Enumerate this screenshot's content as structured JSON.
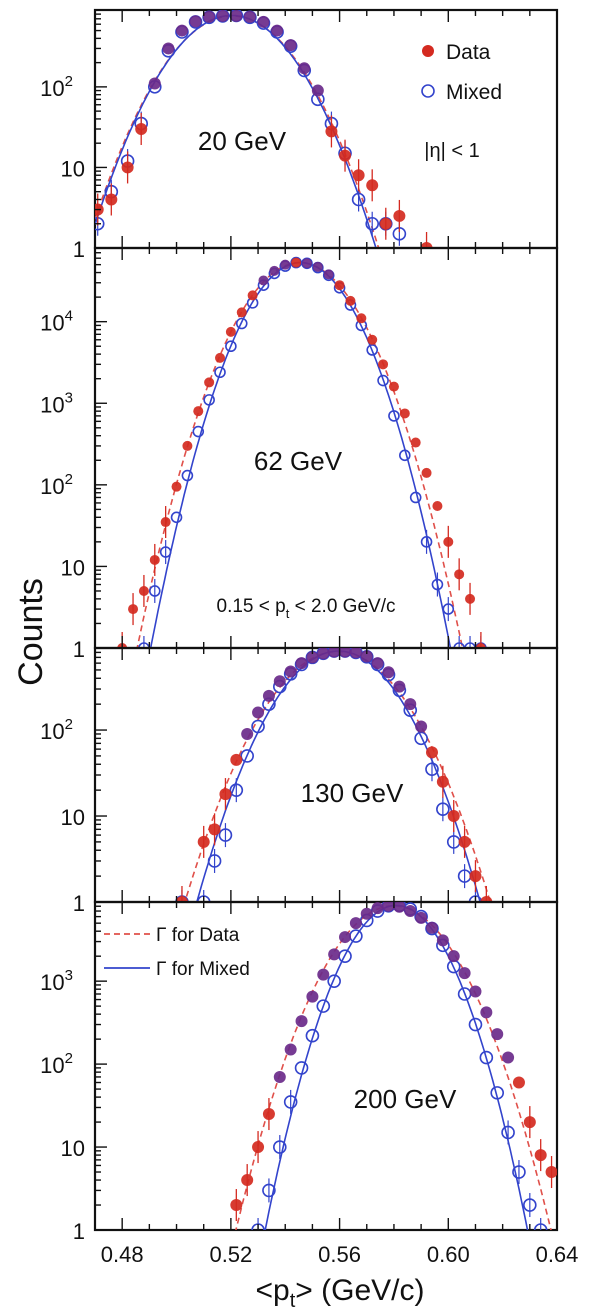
{
  "figure": {
    "ylabel": "Counts",
    "xlabel": "<p",
    "xlabel_sub": "t",
    "xlabel_tail": "> (GeV/c)",
    "x_ticks": [
      "0.48",
      "0.52",
      "0.56",
      "0.60",
      "0.64"
    ],
    "colors": {
      "data": "#d42a20",
      "mixed": "#3344cc",
      "overlap": "#6a2a8a"
    }
  },
  "chart_data": [
    {
      "type": "scatter",
      "panel_label": "20 GeV",
      "annotation": "|η| < 1",
      "legend": [
        {
          "name": "Data",
          "marker": "filled-circle",
          "color": "#d42a20"
        },
        {
          "name": "Mixed",
          "marker": "open-circle",
          "color": "#3344cc"
        }
      ],
      "xlim": [
        0.47,
        0.64
      ],
      "ylim": [
        1,
        900
      ],
      "ylog": true,
      "y_ticks": [
        {
          "value": 1,
          "label": "1"
        },
        {
          "value": 10,
          "label": "10"
        },
        {
          "value": 100,
          "label": "10",
          "sup": "2"
        }
      ],
      "data": {
        "x": [
          0.471,
          0.476,
          0.482,
          0.487,
          0.492,
          0.497,
          0.502,
          0.507,
          0.512,
          0.517,
          0.522,
          0.527,
          0.532,
          0.537,
          0.542,
          0.547,
          0.552,
          0.557,
          0.562,
          0.567,
          0.572,
          0.577,
          0.582,
          0.592
        ],
        "y": [
          3,
          4,
          10,
          30,
          110,
          300,
          500,
          650,
          740,
          760,
          760,
          740,
          640,
          500,
          330,
          170,
          90,
          28,
          14,
          8,
          6,
          2,
          2.5,
          1
        ]
      },
      "mixed": {
        "x": [
          0.471,
          0.476,
          0.482,
          0.487,
          0.492,
          0.497,
          0.502,
          0.507,
          0.512,
          0.517,
          0.522,
          0.527,
          0.532,
          0.537,
          0.542,
          0.547,
          0.552,
          0.557,
          0.562,
          0.567,
          0.572,
          0.577,
          0.582
        ],
        "y": [
          2,
          5,
          12,
          35,
          100,
          280,
          480,
          640,
          730,
          760,
          770,
          730,
          620,
          480,
          320,
          160,
          70,
          35,
          15,
          4,
          2,
          2,
          1.5
        ]
      }
    },
    {
      "type": "scatter",
      "panel_label": "62 GeV",
      "annotation": "0.15 < p",
      "annotation_sub": "t",
      "annotation_tail": " < 2.0 GeV/c",
      "xlim": [
        0.47,
        0.64
      ],
      "ylim": [
        1,
        80000
      ],
      "ylog": true,
      "y_ticks": [
        {
          "value": 1,
          "label": "1"
        },
        {
          "value": 10,
          "label": "10"
        },
        {
          "value": 100,
          "label": "10",
          "sup": "2"
        },
        {
          "value": 1000,
          "label": "10",
          "sup": "3"
        },
        {
          "value": 10000,
          "label": "10",
          "sup": "4"
        }
      ],
      "data": {
        "x": [
          0.48,
          0.484,
          0.488,
          0.492,
          0.496,
          0.5,
          0.504,
          0.508,
          0.512,
          0.516,
          0.52,
          0.524,
          0.528,
          0.532,
          0.536,
          0.54,
          0.544,
          0.548,
          0.552,
          0.556,
          0.56,
          0.564,
          0.568,
          0.572,
          0.576,
          0.58,
          0.584,
          0.588,
          0.592,
          0.596,
          0.6,
          0.604,
          0.608,
          0.612
        ],
        "y": [
          1,
          3,
          5,
          12,
          35,
          95,
          300,
          800,
          1800,
          3600,
          7500,
          13000,
          21000,
          32000,
          42000,
          50000,
          53000,
          52000,
          47000,
          38000,
          28000,
          18000,
          11000,
          6000,
          3000,
          1600,
          750,
          330,
          140,
          55,
          20,
          8,
          4,
          1
        ]
      },
      "mixed": {
        "x": [
          0.488,
          0.492,
          0.496,
          0.5,
          0.504,
          0.508,
          0.512,
          0.516,
          0.52,
          0.524,
          0.528,
          0.532,
          0.536,
          0.54,
          0.544,
          0.548,
          0.552,
          0.556,
          0.56,
          0.564,
          0.568,
          0.572,
          0.576,
          0.58,
          0.584,
          0.588,
          0.592,
          0.596,
          0.6,
          0.604,
          0.608,
          0.612
        ],
        "y": [
          1,
          5,
          15,
          40,
          130,
          450,
          1100,
          2400,
          5000,
          9500,
          17000,
          28000,
          39000,
          48000,
          53000,
          52000,
          46000,
          37000,
          26000,
          16000,
          9000,
          4500,
          1900,
          700,
          230,
          70,
          20,
          6,
          3,
          1,
          1,
          1
        ]
      }
    },
    {
      "type": "scatter",
      "panel_label": "130 GeV",
      "xlim": [
        0.47,
        0.64
      ],
      "ylim": [
        1,
        900
      ],
      "ylog": true,
      "y_ticks": [
        {
          "value": 1,
          "label": "1"
        },
        {
          "value": 10,
          "label": "10"
        },
        {
          "value": 100,
          "label": "10",
          "sup": "2"
        }
      ],
      "data": {
        "x": [
          0.502,
          0.51,
          0.514,
          0.518,
          0.522,
          0.526,
          0.53,
          0.534,
          0.538,
          0.542,
          0.546,
          0.55,
          0.554,
          0.558,
          0.562,
          0.566,
          0.57,
          0.574,
          0.578,
          0.582,
          0.586,
          0.59,
          0.594,
          0.598,
          0.602,
          0.606,
          0.61,
          0.614
        ],
        "y": [
          1,
          5,
          7,
          18,
          45,
          90,
          160,
          250,
          370,
          480,
          600,
          700,
          780,
          820,
          820,
          800,
          720,
          600,
          470,
          320,
          200,
          110,
          55,
          25,
          10,
          5,
          2,
          1
        ]
      },
      "mixed": {
        "x": [
          0.502,
          0.51,
          0.514,
          0.518,
          0.522,
          0.526,
          0.53,
          0.534,
          0.538,
          0.542,
          0.546,
          0.55,
          0.554,
          0.558,
          0.562,
          0.566,
          0.57,
          0.574,
          0.578,
          0.582,
          0.586,
          0.59,
          0.594,
          0.598,
          0.602,
          0.606,
          0.61
        ],
        "y": [
          1,
          1,
          3,
          6,
          20,
          50,
          110,
          200,
          320,
          450,
          580,
          700,
          780,
          830,
          830,
          800,
          710,
          580,
          440,
          290,
          170,
          80,
          35,
          12,
          5,
          2,
          1
        ]
      }
    },
    {
      "type": "scatter",
      "panel_label": "200 GeV",
      "legend": [
        {
          "name": "Γ for Data",
          "line": "dashed",
          "color": "#e0504a"
        },
        {
          "name": "Γ for Mixed",
          "line": "solid",
          "color": "#3344cc"
        }
      ],
      "xlim": [
        0.47,
        0.64
      ],
      "ylim": [
        1,
        9000
      ],
      "ylog": true,
      "y_ticks": [
        {
          "value": 1,
          "label": "1"
        },
        {
          "value": 10,
          "label": "10"
        },
        {
          "value": 100,
          "label": "10",
          "sup": "2"
        },
        {
          "value": 1000,
          "label": "10",
          "sup": "3"
        }
      ],
      "data": {
        "x": [
          0.522,
          0.526,
          0.53,
          0.534,
          0.538,
          0.542,
          0.546,
          0.55,
          0.554,
          0.558,
          0.562,
          0.566,
          0.57,
          0.574,
          0.578,
          0.582,
          0.586,
          0.59,
          0.594,
          0.598,
          0.602,
          0.606,
          0.61,
          0.614,
          0.618,
          0.622,
          0.626,
          0.63,
          0.634,
          0.638
        ],
        "y": [
          2,
          4,
          10,
          25,
          70,
          150,
          330,
          650,
          1200,
          2100,
          3400,
          5000,
          6500,
          7600,
          8100,
          7900,
          7000,
          5800,
          4400,
          3100,
          2000,
          1250,
          750,
          420,
          230,
          120,
          60,
          20,
          8,
          5
        ]
      },
      "mixed": {
        "x": [
          0.53,
          0.534,
          0.538,
          0.542,
          0.546,
          0.55,
          0.554,
          0.558,
          0.562,
          0.566,
          0.57,
          0.574,
          0.578,
          0.582,
          0.586,
          0.59,
          0.594,
          0.598,
          0.602,
          0.606,
          0.61,
          0.614,
          0.618,
          0.622,
          0.626,
          0.63,
          0.634
        ],
        "y": [
          1,
          3,
          10,
          35,
          90,
          220,
          500,
          1000,
          2000,
          3500,
          5400,
          7000,
          8100,
          8200,
          7400,
          6000,
          4300,
          2700,
          1500,
          700,
          300,
          120,
          45,
          15,
          5,
          2,
          1
        ]
      }
    }
  ]
}
